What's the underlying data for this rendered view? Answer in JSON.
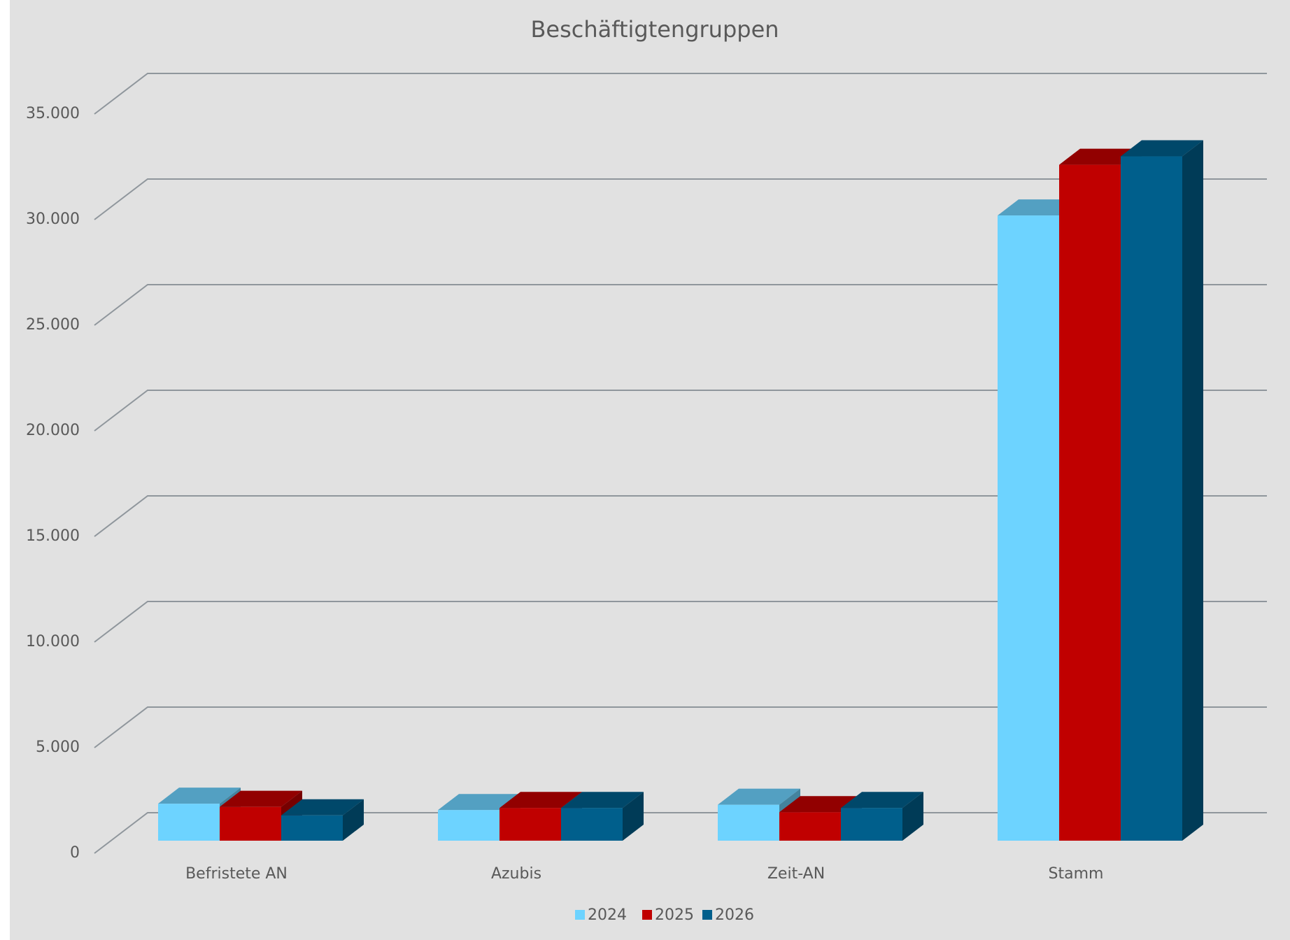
{
  "chart_data": {
    "type": "bar3d",
    "title": "Beschäftigtengruppen",
    "categories": [
      "Befristete AN",
      "Azubis",
      "Zeit-AN",
      "Stamm"
    ],
    "series": [
      {
        "name": "2024",
        "color": "#6dd3ff",
        "values": [
          1750,
          1450,
          1700,
          29600
        ]
      },
      {
        "name": "2025",
        "color": "#c00000",
        "values": [
          1600,
          1550,
          1350,
          32000
        ]
      },
      {
        "name": "2026",
        "color": "#005f8c",
        "values": [
          1200,
          1550,
          1550,
          32400
        ]
      }
    ],
    "ylim": [
      0,
      35000
    ],
    "yticks": [
      0,
      {
        "value": 5000,
        "label": "5.000"
      },
      {
        "value": 10000,
        "label": "10.000"
      },
      {
        "value": 15000,
        "label": "15.000"
      },
      {
        "value": 20000,
        "label": "20.000"
      },
      {
        "value": 25000,
        "label": "25.000"
      },
      {
        "value": 30000,
        "label": "30.000"
      },
      {
        "value": 35000,
        "label": "35.000"
      }
    ],
    "grid": true,
    "legend": "bottom"
  }
}
